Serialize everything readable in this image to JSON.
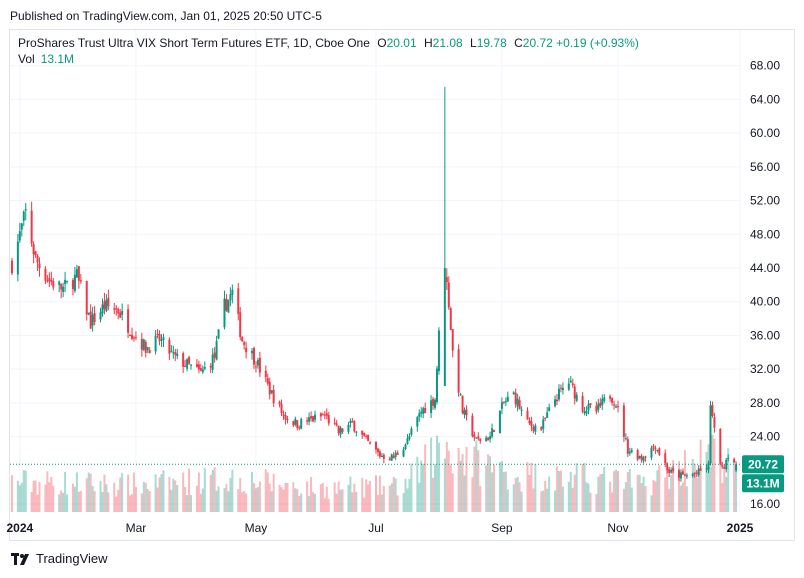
{
  "published": "Published on TradingView.com, Jan 01, 2025 20:50 UTC-5",
  "legend": {
    "title": "ProShares Trust Ultra VIX Short Term Futures ETF, 1D, Cboe One",
    "o_label": "O",
    "o_value": "20.01",
    "h_label": "H",
    "h_value": "21.08",
    "l_label": "L",
    "l_value": "19.78",
    "c_label": "C",
    "c_value": "20.72",
    "change": "+0.19 (+0.93%)",
    "vol_label": "Vol",
    "vol_value": "13.1M"
  },
  "brand": "TradingView",
  "colors": {
    "up": "#089981",
    "down": "#f23645",
    "last_price": "#089981",
    "grid": "#f0f3fa"
  },
  "chart_data": {
    "type": "candlestick",
    "y_ticks": [
      "68.00",
      "64.00",
      "60.00",
      "56.00",
      "52.00",
      "48.00",
      "44.00",
      "40.00",
      "36.00",
      "32.00",
      "28.00",
      "24.00",
      "16.00"
    ],
    "ylim": [
      14.5,
      69.5
    ],
    "x_ticks": [
      {
        "date": "2024-01-02",
        "label": "2024"
      },
      {
        "date": "2024-03-01",
        "label": "Mar"
      },
      {
        "date": "2024-05-01",
        "label": "May"
      },
      {
        "date": "2024-07-01",
        "label": "Jul"
      },
      {
        "date": "2024-09-03",
        "label": "Sep"
      },
      {
        "date": "2024-11-01",
        "label": "Nov"
      },
      {
        "date": "2025-01-02",
        "label": "2025"
      }
    ],
    "xlim": [
      "2023-12-28",
      "2025-01-02"
    ],
    "last_price_label": "20.72",
    "volume_label": "13.1M",
    "close_path": [
      {
        "d": "2023-12-29",
        "c": 44.5
      },
      {
        "d": "2024-01-05",
        "c": 50.5
      },
      {
        "d": "2024-01-10",
        "c": 45.0
      },
      {
        "d": "2024-01-17",
        "c": 42.5
      },
      {
        "d": "2024-01-24",
        "c": 41.5
      },
      {
        "d": "2024-01-31",
        "c": 43.0
      },
      {
        "d": "2024-02-07",
        "c": 37.5
      },
      {
        "d": "2024-02-14",
        "c": 39.5
      },
      {
        "d": "2024-02-21",
        "c": 39.0
      },
      {
        "d": "2024-02-28",
        "c": 36.5
      },
      {
        "d": "2024-03-06",
        "c": 34.5
      },
      {
        "d": "2024-03-13",
        "c": 35.5
      },
      {
        "d": "2024-03-20",
        "c": 33.5
      },
      {
        "d": "2024-03-27",
        "c": 32.5
      },
      {
        "d": "2024-04-03",
        "c": 31.5
      },
      {
        "d": "2024-04-10",
        "c": 33.5
      },
      {
        "d": "2024-04-15",
        "c": 39.5
      },
      {
        "d": "2024-04-19",
        "c": 41.0
      },
      {
        "d": "2024-04-24",
        "c": 35.5
      },
      {
        "d": "2024-05-01",
        "c": 33.0
      },
      {
        "d": "2024-05-08",
        "c": 29.5
      },
      {
        "d": "2024-05-15",
        "c": 26.5
      },
      {
        "d": "2024-05-22",
        "c": 25.5
      },
      {
        "d": "2024-05-29",
        "c": 26.0
      },
      {
        "d": "2024-06-05",
        "c": 26.5
      },
      {
        "d": "2024-06-12",
        "c": 24.5
      },
      {
        "d": "2024-06-19",
        "c": 25.5
      },
      {
        "d": "2024-06-26",
        "c": 23.5
      },
      {
        "d": "2024-07-03",
        "c": 21.8
      },
      {
        "d": "2024-07-10",
        "c": 21.5
      },
      {
        "d": "2024-07-17",
        "c": 23.5
      },
      {
        "d": "2024-07-24",
        "c": 27.0
      },
      {
        "d": "2024-07-31",
        "c": 28.5
      },
      {
        "d": "2024-08-02",
        "c": 36.0
      },
      {
        "d": "2024-08-05",
        "c": 44.0
      },
      {
        "d": "2024-08-07",
        "c": 40.0
      },
      {
        "d": "2024-08-09",
        "c": 34.0
      },
      {
        "d": "2024-08-14",
        "c": 27.0
      },
      {
        "d": "2024-08-21",
        "c": 23.5
      },
      {
        "d": "2024-08-28",
        "c": 24.0
      },
      {
        "d": "2024-09-04",
        "c": 28.0
      },
      {
        "d": "2024-09-09",
        "c": 29.0
      },
      {
        "d": "2024-09-16",
        "c": 25.5
      },
      {
        "d": "2024-09-23",
        "c": 25.0
      },
      {
        "d": "2024-09-30",
        "c": 28.5
      },
      {
        "d": "2024-10-07",
        "c": 30.5
      },
      {
        "d": "2024-10-14",
        "c": 27.5
      },
      {
        "d": "2024-10-21",
        "c": 27.0
      },
      {
        "d": "2024-10-28",
        "c": 29.0
      },
      {
        "d": "2024-10-31",
        "c": 28.0
      },
      {
        "d": "2024-11-06",
        "c": 22.5
      },
      {
        "d": "2024-11-13",
        "c": 21.5
      },
      {
        "d": "2024-11-20",
        "c": 23.0
      },
      {
        "d": "2024-11-27",
        "c": 19.8
      },
      {
        "d": "2024-12-04",
        "c": 19.3
      },
      {
        "d": "2024-12-11",
        "c": 19.6
      },
      {
        "d": "2024-12-17",
        "c": 20.5
      },
      {
        "d": "2024-12-18",
        "c": 28.0
      },
      {
        "d": "2024-12-20",
        "c": 24.5
      },
      {
        "d": "2024-12-24",
        "c": 20.0
      },
      {
        "d": "2024-12-27",
        "c": 22.0
      },
      {
        "d": "2024-12-31",
        "c": 20.72
      }
    ],
    "spike": {
      "d": "2024-08-05",
      "high": 65.5
    },
    "volume_path": [
      {
        "d": "2023-12-29",
        "v": 0.45
      },
      {
        "d": "2024-03-01",
        "v": 0.4
      },
      {
        "d": "2024-04-19",
        "v": 0.5
      },
      {
        "d": "2024-06-01",
        "v": 0.35
      },
      {
        "d": "2024-07-15",
        "v": 0.38
      },
      {
        "d": "2024-08-05",
        "v": 1.0
      },
      {
        "d": "2024-08-20",
        "v": 0.75
      },
      {
        "d": "2024-09-10",
        "v": 0.55
      },
      {
        "d": "2024-10-15",
        "v": 0.5
      },
      {
        "d": "2024-11-15",
        "v": 0.42
      },
      {
        "d": "2024-12-18",
        "v": 0.85
      },
      {
        "d": "2024-12-31",
        "v": 0.6
      }
    ]
  }
}
